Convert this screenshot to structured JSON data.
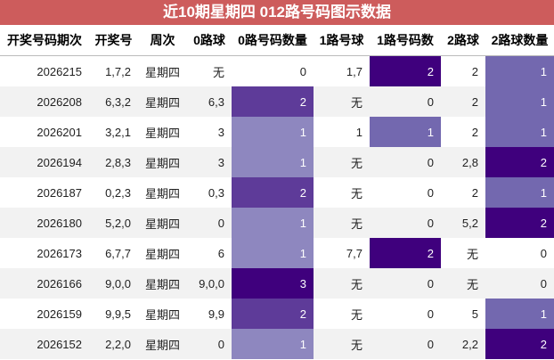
{
  "title": "近10期星期四 012路号码图示数据",
  "table": {
    "header": [
      "开奖号码期次",
      "开奖号",
      "周次",
      "0路球",
      "0路号码数量",
      "1路号球",
      "1路号码数",
      "2路球",
      "2路球数量"
    ],
    "count_columns": [
      4,
      6,
      8
    ],
    "rows": [
      [
        2026215,
        "1,7,2",
        "星期四",
        "无",
        0,
        "1,7",
        2,
        "2",
        1
      ],
      [
        2026208,
        "6,3,2",
        "星期四",
        "6,3",
        2,
        "无",
        0,
        "2",
        1
      ],
      [
        2026201,
        "3,2,1",
        "星期四",
        "3",
        1,
        "1",
        1,
        "2",
        1
      ],
      [
        2026194,
        "2,8,3",
        "星期四",
        "3",
        1,
        "无",
        0,
        "2,8",
        2
      ],
      [
        2026187,
        "0,2,3",
        "星期四",
        "0,3",
        2,
        "无",
        0,
        "2",
        1
      ],
      [
        2026180,
        "5,2,0",
        "星期四",
        "0",
        1,
        "无",
        0,
        "5,2",
        2
      ],
      [
        2026173,
        "6,7,7",
        "星期四",
        "6",
        1,
        "7,7",
        2,
        "无",
        0
      ],
      [
        2026166,
        "9,0,0",
        "星期四",
        "9,0,0",
        3,
        "无",
        0,
        "无",
        0
      ],
      [
        2026159,
        "9,9,5",
        "星期四",
        "9,9",
        2,
        "无",
        0,
        "5",
        1
      ],
      [
        2026152,
        "2,2,0",
        "星期四",
        "0",
        1,
        "无",
        0,
        "2,2",
        2
      ]
    ]
  }
}
